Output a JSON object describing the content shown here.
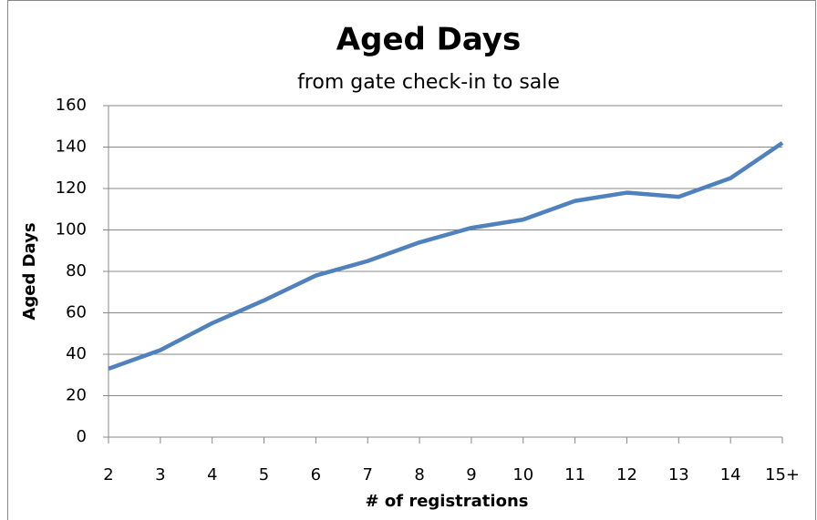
{
  "chart_data": {
    "type": "line",
    "title": "Aged Days",
    "subtitle": "from gate check-in to sale",
    "x_label": "# of registrations",
    "y_label": "Aged Days",
    "categories": [
      "2",
      "3",
      "4",
      "5",
      "6",
      "7",
      "8",
      "9",
      "10",
      "11",
      "12",
      "13",
      "14",
      "15+"
    ],
    "series": [
      {
        "name": "Aged Days",
        "color": "#4f81bd",
        "values": [
          33,
          42,
          55,
          66,
          78,
          85,
          94,
          101,
          105,
          114,
          118,
          116,
          125,
          142
        ]
      }
    ],
    "ylim": [
      0,
      160
    ],
    "yticks": [
      0,
      20,
      40,
      60,
      80,
      100,
      120,
      140,
      160
    ],
    "grid": true
  }
}
